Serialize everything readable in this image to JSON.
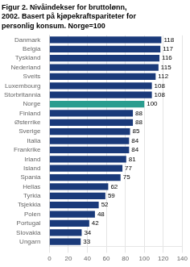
{
  "chart_data": {
    "type": "bar",
    "orientation": "horizontal",
    "title": [
      "Figur 2. Nivåindekser for bruttolønn,",
      "2002. Basert på kjøpekraftspariteter for",
      "personlig konsum. Norge=100"
    ],
    "categories": [
      "Danmark",
      "Belgia",
      "Tyskland",
      "Nederland",
      "Sveits",
      "Luxembourg",
      "Storbritannia",
      "Norge",
      "Finland",
      "Østerrike",
      "Sverige",
      "Italia",
      "Frankrike",
      "Irland",
      "Island",
      "Spania",
      "Hellas",
      "Tyrkia",
      "Tsjekkia",
      "Polen",
      "Portugal",
      "Slovakia",
      "Ungarn"
    ],
    "values": [
      118,
      117,
      116,
      115,
      112,
      108,
      108,
      100,
      88,
      88,
      85,
      84,
      84,
      81,
      77,
      75,
      62,
      59,
      52,
      48,
      42,
      34,
      33
    ],
    "colors": [
      "#1a3a7a",
      "#1a3a7a",
      "#1a3a7a",
      "#1a3a7a",
      "#1a3a7a",
      "#1a3a7a",
      "#1a3a7a",
      "#2a9d8f",
      "#1a3a7a",
      "#1a3a7a",
      "#1a3a7a",
      "#1a3a7a",
      "#1a3a7a",
      "#1a3a7a",
      "#1a3a7a",
      "#1a3a7a",
      "#1a3a7a",
      "#1a3a7a",
      "#1a3a7a",
      "#1a3a7a",
      "#1a3a7a",
      "#1a3a7a",
      "#1a3a7a"
    ],
    "xlim": [
      0,
      140
    ],
    "xticks": [
      0,
      20,
      40,
      60,
      80,
      100,
      120,
      140
    ],
    "grid": true,
    "data_labels": true
  }
}
